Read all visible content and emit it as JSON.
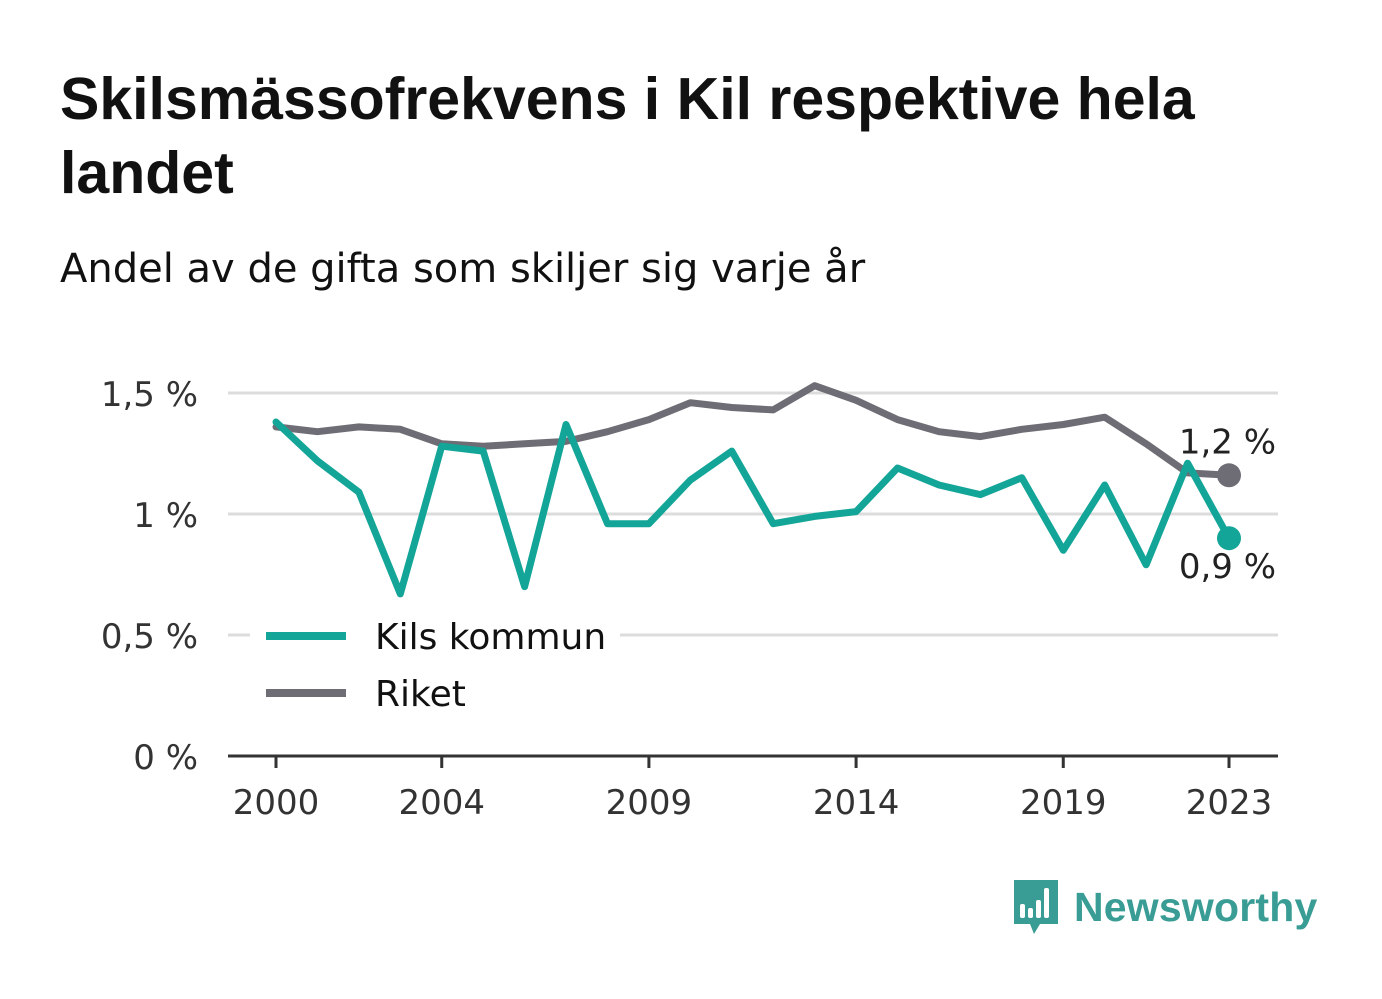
{
  "title": "Skilsmässofrekvens i Kil respektive hela landet",
  "subtitle": "Andel av de gifta som skiljer sig varje år",
  "brand": {
    "name": "Newsworthy",
    "color": "#3a9d95",
    "icon": "bar-chart-speech-bubble-icon"
  },
  "colors": {
    "kil": "#13a597",
    "riket": "#6e6d75",
    "grid": "#dcdcdc",
    "axis": "#333333"
  },
  "chart_data": {
    "type": "line",
    "x": [
      2000,
      2001,
      2002,
      2003,
      2004,
      2005,
      2006,
      2007,
      2008,
      2009,
      2010,
      2011,
      2012,
      2013,
      2014,
      2015,
      2016,
      2017,
      2018,
      2019,
      2020,
      2021,
      2022,
      2023
    ],
    "xticks": [
      2000,
      2004,
      2009,
      2014,
      2019,
      2023
    ],
    "yticks": [
      0,
      0.5,
      1,
      1.5
    ],
    "ytick_labels": [
      "0 %",
      "0,5 %",
      "1 %",
      "1,5 %"
    ],
    "ylim": [
      0,
      1.5
    ],
    "xlim": [
      2000,
      2023
    ],
    "grid": true,
    "legend_position": "bottom-left",
    "series": [
      {
        "name": "Kils kommun",
        "key": "kil",
        "values": [
          1.38,
          1.22,
          1.09,
          0.67,
          1.28,
          1.26,
          0.7,
          1.37,
          0.96,
          0.96,
          1.14,
          1.26,
          0.96,
          0.99,
          1.01,
          1.19,
          1.12,
          1.08,
          1.15,
          0.85,
          1.12,
          0.79,
          1.21,
          0.9
        ],
        "end_label": "0,9 %"
      },
      {
        "name": "Riket",
        "key": "riket",
        "values": [
          1.36,
          1.34,
          1.36,
          1.35,
          1.29,
          1.28,
          1.29,
          1.3,
          1.34,
          1.39,
          1.46,
          1.44,
          1.43,
          1.53,
          1.47,
          1.39,
          1.34,
          1.32,
          1.35,
          1.37,
          1.4,
          1.29,
          1.17,
          1.16
        ],
        "end_label": "1,2 %"
      }
    ]
  }
}
